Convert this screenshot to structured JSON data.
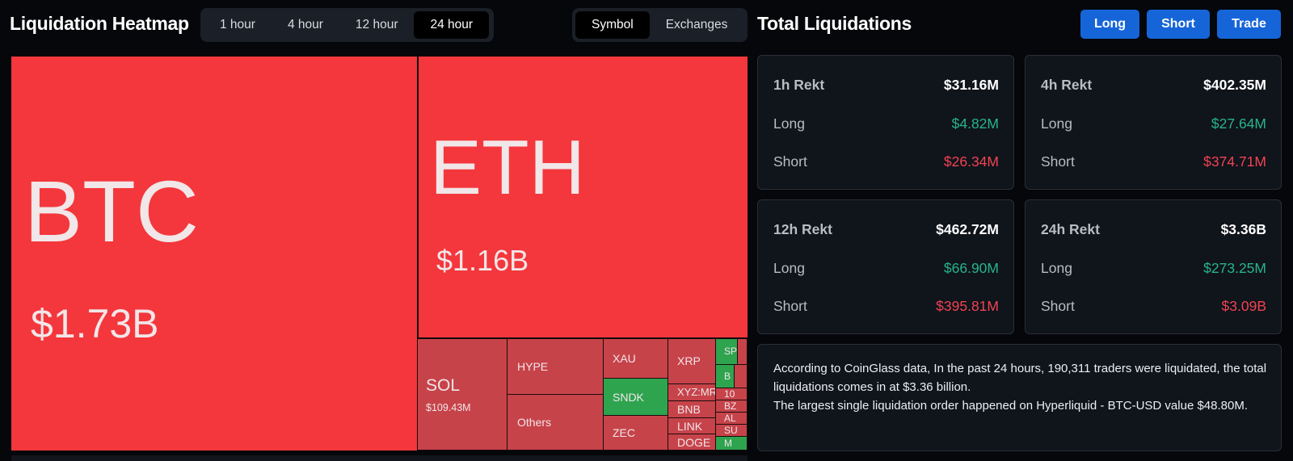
{
  "header": {
    "title": "Liquidation Heatmap",
    "time_tabs": [
      {
        "label": "1 hour",
        "active": false
      },
      {
        "label": "4 hour",
        "active": false
      },
      {
        "label": "12 hour",
        "active": false
      },
      {
        "label": "24 hour",
        "active": true
      }
    ],
    "view_tabs": [
      {
        "label": "Symbol",
        "active": true
      },
      {
        "label": "Exchanges",
        "active": false
      }
    ]
  },
  "totals": {
    "title": "Total Liquidations",
    "buttons": {
      "long": "Long",
      "short": "Short",
      "trade": "Trade"
    },
    "cards": [
      {
        "label": "1h Rekt",
        "total": "$31.16M",
        "long_label": "Long",
        "long": "$4.82M",
        "short_label": "Short",
        "short": "$26.34M"
      },
      {
        "label": "4h Rekt",
        "total": "$402.35M",
        "long_label": "Long",
        "long": "$27.64M",
        "short_label": "Short",
        "short": "$374.71M"
      },
      {
        "label": "12h Rekt",
        "total": "$462.72M",
        "long_label": "Long",
        "long": "$66.90M",
        "short_label": "Short",
        "short": "$395.81M"
      },
      {
        "label": "24h Rekt",
        "total": "$3.36B",
        "long_label": "Long",
        "long": "$273.25M",
        "short_label": "Short",
        "short": "$3.09B"
      }
    ],
    "info_line1": "According to CoinGlass data, In the past 24 hours, 190,311 traders were liquidated, the total liquidations comes in at $3.36 billion.",
    "info_line2": "The largest single liquidation order happened on Hyperliquid - BTC-USD value $48.80M."
  },
  "heatmap": {
    "btc": {
      "symbol": "BTC",
      "value": "$1.73B"
    },
    "eth": {
      "symbol": "ETH",
      "value": "$1.16B"
    },
    "sol": {
      "symbol": "SOL",
      "value": "$109.43M"
    },
    "hype": "HYPE",
    "others": "Others",
    "xau": "XAU",
    "sndk": "SNDK",
    "zec": "ZEC",
    "xrp": "XRP",
    "xyz": "XYZ:MR",
    "bnb": "BNB",
    "link": "LINK",
    "doge": "DOGE",
    "small": [
      "SP",
      "B",
      "10",
      "BZ",
      "AL",
      "SU",
      "M"
    ]
  },
  "colors": {
    "large_loss": "#f4373c",
    "small_loss": "#c7434a",
    "gain": "#2ea44f",
    "accent_button": "#1565d8",
    "positive_text": "#27b58a",
    "negative_text": "#f04352"
  }
}
